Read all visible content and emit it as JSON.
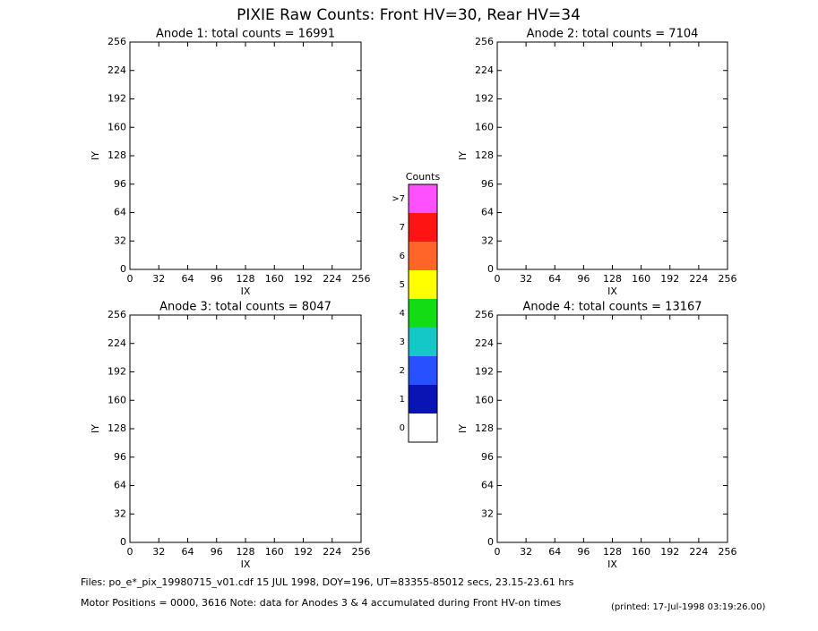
{
  "title": "PIXIE Raw Counts:  Front HV=30, Rear HV=34",
  "chart_data": [
    {
      "type": "heatmap",
      "title": "Anode 1: total counts = 16991",
      "xlabel": "IX",
      "ylabel": "IY",
      "xlim": [
        0,
        256
      ],
      "xticks": [
        0,
        32,
        64,
        96,
        128,
        160,
        192,
        224,
        256
      ],
      "ylim": [
        0,
        256
      ],
      "yticks": [
        0,
        32,
        64,
        96,
        128,
        160,
        192,
        224,
        256
      ]
    },
    {
      "type": "heatmap",
      "title": "Anode 2: total counts = 7104",
      "xlabel": "IX",
      "ylabel": "IY",
      "xlim": [
        0,
        256
      ],
      "xticks": [
        0,
        32,
        64,
        96,
        128,
        160,
        192,
        224,
        256
      ],
      "ylim": [
        0,
        256
      ],
      "yticks": [
        0,
        32,
        64,
        96,
        128,
        160,
        192,
        224,
        256
      ]
    },
    {
      "type": "heatmap",
      "title": "Anode 3: total counts = 8047",
      "xlabel": "IX",
      "ylabel": "IY",
      "xlim": [
        0,
        256
      ],
      "xticks": [
        0,
        32,
        64,
        96,
        128,
        160,
        192,
        224,
        256
      ],
      "ylim": [
        0,
        256
      ],
      "yticks": [
        0,
        32,
        64,
        96,
        128,
        160,
        192,
        224,
        256
      ]
    },
    {
      "type": "heatmap",
      "title": "Anode 4: total counts = 13167",
      "xlabel": "IX",
      "ylabel": "IY",
      "xlim": [
        0,
        256
      ],
      "xticks": [
        0,
        32,
        64,
        96,
        128,
        160,
        192,
        224,
        256
      ],
      "ylim": [
        0,
        256
      ],
      "yticks": [
        0,
        32,
        64,
        96,
        128,
        160,
        192,
        224,
        256
      ]
    }
  ],
  "colorbar": {
    "title": "Counts",
    "levels": [
      {
        "label": "0",
        "color": "#ffffff"
      },
      {
        "label": "1",
        "color": "#0a14b4"
      },
      {
        "label": "2",
        "color": "#2850ff"
      },
      {
        "label": "3",
        "color": "#14c8c8"
      },
      {
        "label": "4",
        "color": "#14dc14"
      },
      {
        "label": "5",
        "color": "#ffff00"
      },
      {
        "label": "6",
        "color": "#ff6428"
      },
      {
        "label": "7",
        "color": "#ff1414"
      },
      {
        "label": ">7",
        "color": "#ff50ff"
      }
    ]
  },
  "footer": {
    "files": "Files: po_e*_pix_19980715_v01.cdf    15 JUL 1998, DOY=196, UT=83355-85012 secs, 23.15-23.61 hrs",
    "motor": "Motor Positions = 0000, 3616    Note: data for Anodes 3 & 4 accumulated during Front HV-on times",
    "printed": "(printed: 17-Jul-1998 03:19:26.00)"
  }
}
